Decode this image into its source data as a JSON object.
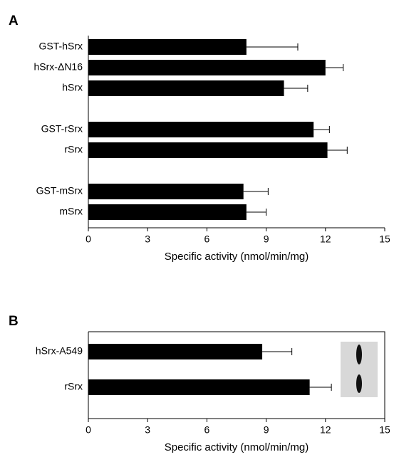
{
  "chart_data": [
    {
      "type": "bar",
      "orientation": "horizontal",
      "title": "A",
      "categories": [
        "GST-hSrx",
        "hSrx-ΔN16",
        "hSrx",
        null,
        "GST-rSrx",
        "rSrx",
        null,
        "GST-mSrx",
        "mSrx"
      ],
      "values": [
        8.0,
        12.0,
        9.9,
        null,
        11.4,
        12.1,
        null,
        7.85,
        8.0
      ],
      "errors": [
        2.6,
        0.9,
        1.2,
        null,
        0.8,
        1.0,
        null,
        1.25,
        1.0
      ],
      "color": "#000000",
      "xlabel": "Specific activity (nmol/min/mg)",
      "xlim": [
        0,
        15
      ],
      "xticks": [
        0,
        3,
        6,
        9,
        12,
        15
      ]
    },
    {
      "type": "bar",
      "orientation": "horizontal",
      "title": "B",
      "categories": [
        "hSrx-A549",
        "rSrx"
      ],
      "values": [
        8.8,
        11.2
      ],
      "errors": [
        1.5,
        1.1
      ],
      "color": "#000000",
      "xlabel": "Specific activity (nmol/min/mg)",
      "xlim": [
        0,
        15
      ],
      "xticks": [
        0,
        3,
        6,
        9,
        12,
        15
      ]
    }
  ]
}
